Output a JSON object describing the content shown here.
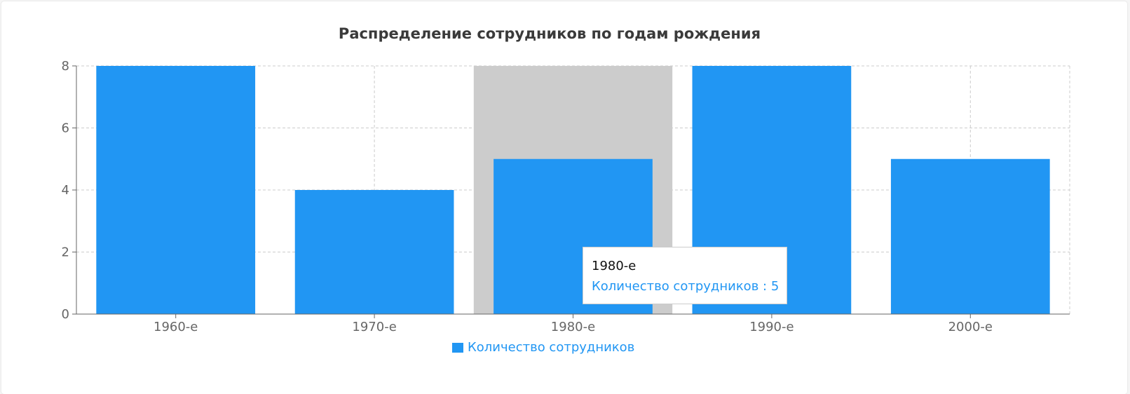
{
  "chart_data": {
    "type": "bar",
    "title": "Распределение сотрудников по годам рождения",
    "categories": [
      "1960-е",
      "1970-е",
      "1980-е",
      "1990-е",
      "2000-е"
    ],
    "series": [
      {
        "name": "Количество сотрудников",
        "values": [
          8,
          4,
          5,
          8,
          5
        ]
      }
    ],
    "ylim": [
      0,
      8
    ],
    "yticks": [
      "0",
      "2",
      "4",
      "6",
      "8"
    ],
    "grid": true,
    "legend": "bottom",
    "highlighted_category": "1980-е"
  },
  "colors": {
    "bar": "#2196f3",
    "highlight": "#cccccc",
    "grid": "#cccccc",
    "axis": "#666666",
    "text": "#666666",
    "legend_text": "#2196f3"
  },
  "tooltip": {
    "label": "1980-е",
    "value_text": "Количество сотрудников : 5"
  }
}
